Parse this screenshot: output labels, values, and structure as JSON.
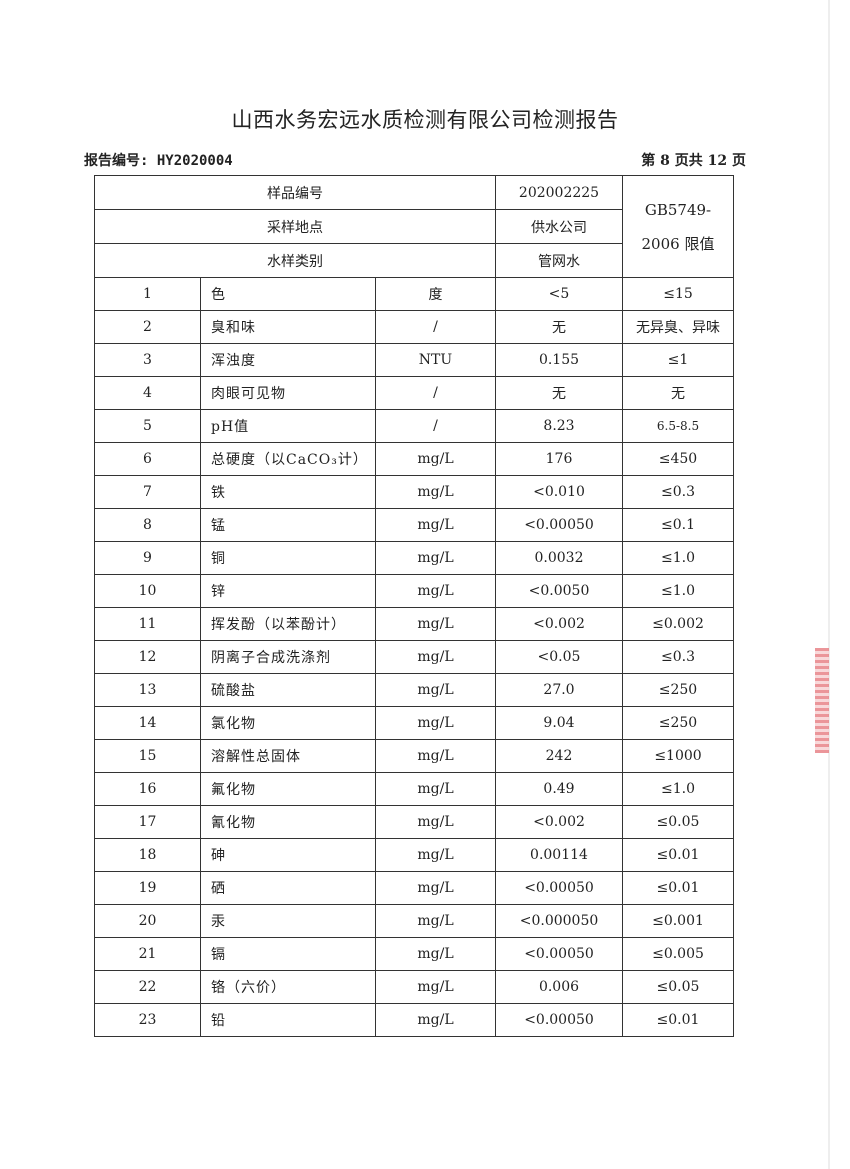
{
  "title": "山西水务宏远水质检测有限公司检测报告",
  "report_no": "报告编号: HY2020004",
  "page_info": "第 8 页共 12 页",
  "header": {
    "sample_no_label": "样品编号",
    "sample_no": "202002225",
    "location_label": "采样地点",
    "location": "供水公司",
    "type_label": "水样类别",
    "type": "管网水",
    "standard_line1": "GB5749-",
    "standard_line2": "2006 限值"
  },
  "rows": [
    {
      "no": "1",
      "item": "色",
      "unit": "度",
      "result": "<5",
      "limit": "≤15"
    },
    {
      "no": "2",
      "item": "臭和味",
      "unit": "/",
      "result": "无",
      "limit": "无异臭、异味"
    },
    {
      "no": "3",
      "item": "浑浊度",
      "unit": "NTU",
      "result": "0.155",
      "limit": "≤1"
    },
    {
      "no": "4",
      "item": "肉眼可见物",
      "unit": "/",
      "result": "无",
      "limit": "无"
    },
    {
      "no": "5",
      "item": "pH值",
      "unit": "/",
      "result": "8.23",
      "limit": "6.5-8.5"
    },
    {
      "no": "6",
      "item": "总硬度（以CaCO₃计）",
      "unit": "mg/L",
      "result": "176",
      "limit": "≤450"
    },
    {
      "no": "7",
      "item": "铁",
      "unit": "mg/L",
      "result": "<0.010",
      "limit": "≤0.3"
    },
    {
      "no": "8",
      "item": "锰",
      "unit": "mg/L",
      "result": "<0.00050",
      "limit": "≤0.1"
    },
    {
      "no": "9",
      "item": "铜",
      "unit": "mg/L",
      "result": "0.0032",
      "limit": "≤1.0"
    },
    {
      "no": "10",
      "item": "锌",
      "unit": "mg/L",
      "result": "<0.0050",
      "limit": "≤1.0"
    },
    {
      "no": "11",
      "item": "挥发酚（以苯酚计）",
      "unit": "mg/L",
      "result": "<0.002",
      "limit": "≤0.002"
    },
    {
      "no": "12",
      "item": "阴离子合成洗涤剂",
      "unit": "mg/L",
      "result": "<0.05",
      "limit": "≤0.3"
    },
    {
      "no": "13",
      "item": "硫酸盐",
      "unit": "mg/L",
      "result": "27.0",
      "limit": "≤250"
    },
    {
      "no": "14",
      "item": "氯化物",
      "unit": "mg/L",
      "result": "9.04",
      "limit": "≤250"
    },
    {
      "no": "15",
      "item": "溶解性总固体",
      "unit": "mg/L",
      "result": "242",
      "limit": "≤1000"
    },
    {
      "no": "16",
      "item": "氟化物",
      "unit": "mg/L",
      "result": "0.49",
      "limit": "≤1.0"
    },
    {
      "no": "17",
      "item": "氰化物",
      "unit": "mg/L",
      "result": "<0.002",
      "limit": "≤0.05"
    },
    {
      "no": "18",
      "item": "砷",
      "unit": "mg/L",
      "result": "0.00114",
      "limit": "≤0.01"
    },
    {
      "no": "19",
      "item": "硒",
      "unit": "mg/L",
      "result": "<0.00050",
      "limit": "≤0.01"
    },
    {
      "no": "20",
      "item": "汞",
      "unit": "mg/L",
      "result": "<0.000050",
      "limit": "≤0.001"
    },
    {
      "no": "21",
      "item": "镉",
      "unit": "mg/L",
      "result": "<0.00050",
      "limit": "≤0.005"
    },
    {
      "no": "22",
      "item": "铬（六价）",
      "unit": "mg/L",
      "result": "0.006",
      "limit": "≤0.05"
    },
    {
      "no": "23",
      "item": "铅",
      "unit": "mg/L",
      "result": "<0.00050",
      "limit": "≤0.01"
    }
  ]
}
